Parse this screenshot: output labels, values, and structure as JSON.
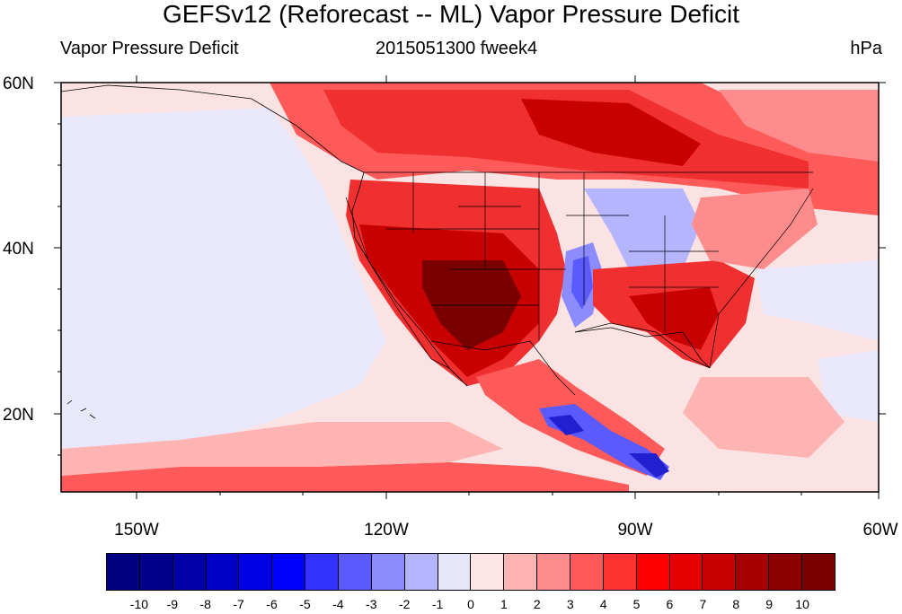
{
  "title": "GEFSv12 (Reforecast -- ML) Vapor Pressure Deficit",
  "subtitle_left": "Vapor Pressure Deficit",
  "subtitle_center": "2015051300 fweek4",
  "subtitle_right": "hPa",
  "lat_labels": [
    "60N",
    "40N",
    "20N"
  ],
  "lon_labels": [
    "150W",
    "120W",
    "90W",
    "60W"
  ],
  "colorbar": {
    "labels": [
      "-10",
      "-9",
      "-8",
      "-7",
      "-6",
      "-5",
      "-4",
      "-3",
      "-2",
      "-1",
      "0",
      "1",
      "2",
      "3",
      "4",
      "5",
      "6",
      "7",
      "8",
      "9",
      "10"
    ],
    "colors": [
      "#000080",
      "#00008c",
      "#0000a8",
      "#0000c8",
      "#0000e4",
      "#0000ff",
      "#3232ff",
      "#5a5aff",
      "#8c8cff",
      "#b4b4ff",
      "#e6e6fa",
      "#ffe6e6",
      "#ffb4b4",
      "#ff8c8c",
      "#ff5a5a",
      "#ff3232",
      "#ff0000",
      "#e60000",
      "#c80000",
      "#a80000",
      "#8c0000",
      "#7a0000"
    ]
  },
  "colors": {
    "ocean": "#fbe3e3",
    "pacific": "#e8e8fa",
    "light_red": "#ffb4b4",
    "mid_red": "#ff5a5a",
    "red": "#f03030",
    "dark_red": "#c80000",
    "darkest_red": "#7a0000",
    "blue": "#8c8cff",
    "dark_blue": "#2020d0"
  }
}
